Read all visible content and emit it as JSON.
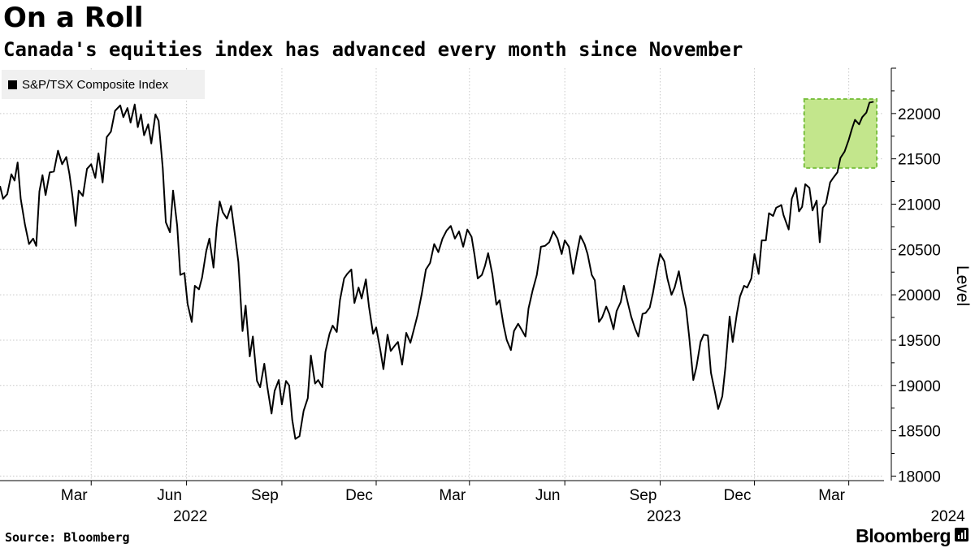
{
  "title": "On a Roll",
  "subtitle": "Canada's equities index has advanced every month since November",
  "legend": [
    {
      "label": "S&P/TSX Composite Index",
      "color": "#000000"
    }
  ],
  "footer": {
    "source": "Source: Bloomberg",
    "brand": "Bloomberg"
  },
  "chart_data": {
    "type": "line",
    "title": "On a Roll",
    "subtitle": "Canada's equities index has advanced every month since November",
    "ylabel": "Level",
    "ylim": [
      17950,
      22500
    ],
    "xlim": [
      "2021-12-03",
      "2024-04-04"
    ],
    "grid": true,
    "legend_position": "top-left",
    "yticks": [
      18000,
      18500,
      19000,
      19500,
      20000,
      20500,
      21000,
      21500,
      22000
    ],
    "ytick_labels": [
      "18000",
      "18500",
      "19000",
      "19500",
      "20000",
      "20500",
      "21000",
      "21500",
      "22000"
    ],
    "xticks": [
      {
        "date": "2022-03-01",
        "label": "Mar",
        "year": "2022"
      },
      {
        "date": "2022-06-01",
        "label": "Jun",
        "year": ""
      },
      {
        "date": "2022-09-01",
        "label": "Sep",
        "year": ""
      },
      {
        "date": "2022-12-01",
        "label": "Dec",
        "year": ""
      },
      {
        "date": "2023-03-01",
        "label": "Mar",
        "year": ""
      },
      {
        "date": "2023-06-01",
        "label": "Jun",
        "year": "2023"
      },
      {
        "date": "2023-09-01",
        "label": "Sep",
        "year": ""
      },
      {
        "date": "2023-12-01",
        "label": "Dec",
        "year": ""
      },
      {
        "date": "2024-03-01",
        "label": "Mar",
        "year": "2024"
      }
    ],
    "highlight": {
      "x_start": "2024-01-18",
      "x_end": "2024-03-28",
      "y_start": 21400,
      "y_end": 22160,
      "fill": "#c3e68c",
      "stroke": "#7cc142"
    },
    "series": [
      {
        "name": "S&P/TSX Composite Index",
        "color": "#000000",
        "points": [
          [
            "2021-12-03",
            21200
          ],
          [
            "2021-12-06",
            21060
          ],
          [
            "2021-12-10",
            21110
          ],
          [
            "2021-12-14",
            21330
          ],
          [
            "2021-12-17",
            21260
          ],
          [
            "2021-12-20",
            21460
          ],
          [
            "2021-12-23",
            21060
          ],
          [
            "2021-12-27",
            20780
          ],
          [
            "2021-12-31",
            20560
          ],
          [
            "2022-01-04",
            20620
          ],
          [
            "2022-01-07",
            20540
          ],
          [
            "2022-01-10",
            21140
          ],
          [
            "2022-01-13",
            21320
          ],
          [
            "2022-01-16",
            21100
          ],
          [
            "2022-01-20",
            21350
          ],
          [
            "2022-01-24",
            21360
          ],
          [
            "2022-01-28",
            21590
          ],
          [
            "2022-02-01",
            21440
          ],
          [
            "2022-02-05",
            21520
          ],
          [
            "2022-02-08",
            21330
          ],
          [
            "2022-02-11",
            21080
          ],
          [
            "2022-02-14",
            20760
          ],
          [
            "2022-02-17",
            21150
          ],
          [
            "2022-02-21",
            21090
          ],
          [
            "2022-02-25",
            21390
          ],
          [
            "2022-03-01",
            21440
          ],
          [
            "2022-03-05",
            21290
          ],
          [
            "2022-03-08",
            21560
          ],
          [
            "2022-03-12",
            21240
          ],
          [
            "2022-03-16",
            21740
          ],
          [
            "2022-03-20",
            21800
          ],
          [
            "2022-03-24",
            22030
          ],
          [
            "2022-03-29",
            22090
          ],
          [
            "2022-04-01",
            21960
          ],
          [
            "2022-04-05",
            22060
          ],
          [
            "2022-04-08",
            21900
          ],
          [
            "2022-04-12",
            22100
          ],
          [
            "2022-04-15",
            21850
          ],
          [
            "2022-04-18",
            21990
          ],
          [
            "2022-04-21",
            21760
          ],
          [
            "2022-04-25",
            21880
          ],
          [
            "2022-04-28",
            21670
          ],
          [
            "2022-05-02",
            21990
          ],
          [
            "2022-05-05",
            21920
          ],
          [
            "2022-05-09",
            21400
          ],
          [
            "2022-05-12",
            20800
          ],
          [
            "2022-05-16",
            20690
          ],
          [
            "2022-05-19",
            21150
          ],
          [
            "2022-05-23",
            20760
          ],
          [
            "2022-05-26",
            20220
          ],
          [
            "2022-05-30",
            20240
          ],
          [
            "2022-06-02",
            19900
          ],
          [
            "2022-06-06",
            19700
          ],
          [
            "2022-06-09",
            20100
          ],
          [
            "2022-06-13",
            20060
          ],
          [
            "2022-06-16",
            20190
          ],
          [
            "2022-06-20",
            20480
          ],
          [
            "2022-06-23",
            20620
          ],
          [
            "2022-06-27",
            20300
          ],
          [
            "2022-06-30",
            20740
          ],
          [
            "2022-07-03",
            21030
          ],
          [
            "2022-07-06",
            20910
          ],
          [
            "2022-07-10",
            20840
          ],
          [
            "2022-07-14",
            20980
          ],
          [
            "2022-07-18",
            20640
          ],
          [
            "2022-07-21",
            20360
          ],
          [
            "2022-07-25",
            19600
          ],
          [
            "2022-07-28",
            19880
          ],
          [
            "2022-08-01",
            19320
          ],
          [
            "2022-08-04",
            19540
          ],
          [
            "2022-08-08",
            19050
          ],
          [
            "2022-08-11",
            18980
          ],
          [
            "2022-08-15",
            19240
          ],
          [
            "2022-08-18",
            18980
          ],
          [
            "2022-08-22",
            18690
          ],
          [
            "2022-08-25",
            18940
          ],
          [
            "2022-08-29",
            19060
          ],
          [
            "2022-09-01",
            18790
          ],
          [
            "2022-09-05",
            19050
          ],
          [
            "2022-09-08",
            19000
          ],
          [
            "2022-09-11",
            18620
          ],
          [
            "2022-09-14",
            18410
          ],
          [
            "2022-09-18",
            18440
          ],
          [
            "2022-09-22",
            18720
          ],
          [
            "2022-09-26",
            18860
          ],
          [
            "2022-09-29",
            19330
          ],
          [
            "2022-10-03",
            19020
          ],
          [
            "2022-10-06",
            19060
          ],
          [
            "2022-10-10",
            18980
          ],
          [
            "2022-10-13",
            19370
          ],
          [
            "2022-10-17",
            19570
          ],
          [
            "2022-10-20",
            19660
          ],
          [
            "2022-10-24",
            19590
          ],
          [
            "2022-10-27",
            19940
          ],
          [
            "2022-10-31",
            20180
          ],
          [
            "2022-11-03",
            20230
          ],
          [
            "2022-11-07",
            20280
          ],
          [
            "2022-11-10",
            19910
          ],
          [
            "2022-11-14",
            20080
          ],
          [
            "2022-11-17",
            19960
          ],
          [
            "2022-11-21",
            20170
          ],
          [
            "2022-11-24",
            19870
          ],
          [
            "2022-11-28",
            19570
          ],
          [
            "2022-12-01",
            19640
          ],
          [
            "2022-12-05",
            19390
          ],
          [
            "2022-12-08",
            19180
          ],
          [
            "2022-12-12",
            19560
          ],
          [
            "2022-12-15",
            19380
          ],
          [
            "2022-12-19",
            19440
          ],
          [
            "2022-12-22",
            19480
          ],
          [
            "2022-12-26",
            19230
          ],
          [
            "2022-12-30",
            19580
          ],
          [
            "2023-01-03",
            19470
          ],
          [
            "2023-01-06",
            19600
          ],
          [
            "2023-01-10",
            19780
          ],
          [
            "2023-01-14",
            20010
          ],
          [
            "2023-01-18",
            20280
          ],
          [
            "2023-01-22",
            20350
          ],
          [
            "2023-01-26",
            20560
          ],
          [
            "2023-01-30",
            20470
          ],
          [
            "2023-02-03",
            20620
          ],
          [
            "2023-02-07",
            20710
          ],
          [
            "2023-02-11",
            20760
          ],
          [
            "2023-02-15",
            20620
          ],
          [
            "2023-02-19",
            20700
          ],
          [
            "2023-02-23",
            20530
          ],
          [
            "2023-02-27",
            20720
          ],
          [
            "2023-03-03",
            20640
          ],
          [
            "2023-03-06",
            20430
          ],
          [
            "2023-03-09",
            20180
          ],
          [
            "2023-03-13",
            20220
          ],
          [
            "2023-03-16",
            20320
          ],
          [
            "2023-03-19",
            20460
          ],
          [
            "2023-03-23",
            20230
          ],
          [
            "2023-03-27",
            19890
          ],
          [
            "2023-03-30",
            19940
          ],
          [
            "2023-04-03",
            19660
          ],
          [
            "2023-04-06",
            19500
          ],
          [
            "2023-04-10",
            19390
          ],
          [
            "2023-04-13",
            19600
          ],
          [
            "2023-04-17",
            19680
          ],
          [
            "2023-04-20",
            19620
          ],
          [
            "2023-04-24",
            19540
          ],
          [
            "2023-04-27",
            19850
          ],
          [
            "2023-05-01",
            20050
          ],
          [
            "2023-05-05",
            20220
          ],
          [
            "2023-05-09",
            20530
          ],
          [
            "2023-05-13",
            20540
          ],
          [
            "2023-05-17",
            20580
          ],
          [
            "2023-05-21",
            20700
          ],
          [
            "2023-05-25",
            20620
          ],
          [
            "2023-05-29",
            20450
          ],
          [
            "2023-06-01",
            20600
          ],
          [
            "2023-06-05",
            20530
          ],
          [
            "2023-06-09",
            20230
          ],
          [
            "2023-06-13",
            20480
          ],
          [
            "2023-06-16",
            20650
          ],
          [
            "2023-06-20",
            20560
          ],
          [
            "2023-06-23",
            20450
          ],
          [
            "2023-06-27",
            20220
          ],
          [
            "2023-06-30",
            20160
          ],
          [
            "2023-07-04",
            19700
          ],
          [
            "2023-07-07",
            19750
          ],
          [
            "2023-07-11",
            19870
          ],
          [
            "2023-07-14",
            19790
          ],
          [
            "2023-07-18",
            19620
          ],
          [
            "2023-07-21",
            19820
          ],
          [
            "2023-07-25",
            19920
          ],
          [
            "2023-07-28",
            20100
          ],
          [
            "2023-08-01",
            19900
          ],
          [
            "2023-08-04",
            19760
          ],
          [
            "2023-08-08",
            19620
          ],
          [
            "2023-08-11",
            19540
          ],
          [
            "2023-08-15",
            19790
          ],
          [
            "2023-08-18",
            19800
          ],
          [
            "2023-08-22",
            19860
          ],
          [
            "2023-08-25",
            20020
          ],
          [
            "2023-08-29",
            20280
          ],
          [
            "2023-09-01",
            20450
          ],
          [
            "2023-09-05",
            20370
          ],
          [
            "2023-09-08",
            20180
          ],
          [
            "2023-09-12",
            20000
          ],
          [
            "2023-09-15",
            20080
          ],
          [
            "2023-09-19",
            20260
          ],
          [
            "2023-09-22",
            20060
          ],
          [
            "2023-09-26",
            19850
          ],
          [
            "2023-09-29",
            19540
          ],
          [
            "2023-10-03",
            19060
          ],
          [
            "2023-10-06",
            19200
          ],
          [
            "2023-10-10",
            19480
          ],
          [
            "2023-10-13",
            19560
          ],
          [
            "2023-10-17",
            19550
          ],
          [
            "2023-10-20",
            19140
          ],
          [
            "2023-10-24",
            18920
          ],
          [
            "2023-10-27",
            18740
          ],
          [
            "2023-10-31",
            18880
          ],
          [
            "2023-11-03",
            19200
          ],
          [
            "2023-11-07",
            19760
          ],
          [
            "2023-11-10",
            19480
          ],
          [
            "2023-11-14",
            19790
          ],
          [
            "2023-11-17",
            19980
          ],
          [
            "2023-11-21",
            20100
          ],
          [
            "2023-11-24",
            20080
          ],
          [
            "2023-11-28",
            20180
          ],
          [
            "2023-12-01",
            20450
          ],
          [
            "2023-12-05",
            20230
          ],
          [
            "2023-12-08",
            20600
          ],
          [
            "2023-12-12",
            20600
          ],
          [
            "2023-12-15",
            20900
          ],
          [
            "2023-12-19",
            20870
          ],
          [
            "2023-12-22",
            20960
          ],
          [
            "2023-12-27",
            20990
          ],
          [
            "2023-12-29",
            20880
          ],
          [
            "2024-01-03",
            20720
          ],
          [
            "2024-01-06",
            21060
          ],
          [
            "2024-01-10",
            21180
          ],
          [
            "2024-01-13",
            20920
          ],
          [
            "2024-01-16",
            20970
          ],
          [
            "2024-01-19",
            21220
          ],
          [
            "2024-01-23",
            21180
          ],
          [
            "2024-01-26",
            20930
          ],
          [
            "2024-01-30",
            21040
          ],
          [
            "2024-02-02",
            20580
          ],
          [
            "2024-02-05",
            20960
          ],
          [
            "2024-02-08",
            21010
          ],
          [
            "2024-02-12",
            21240
          ],
          [
            "2024-02-15",
            21290
          ],
          [
            "2024-02-19",
            21350
          ],
          [
            "2024-02-22",
            21510
          ],
          [
            "2024-02-26",
            21580
          ],
          [
            "2024-03-01",
            21710
          ],
          [
            "2024-03-04",
            21830
          ],
          [
            "2024-03-07",
            21930
          ],
          [
            "2024-03-11",
            21880
          ],
          [
            "2024-03-14",
            21960
          ],
          [
            "2024-03-18",
            22010
          ],
          [
            "2024-03-21",
            22120
          ],
          [
            "2024-03-25",
            22130
          ]
        ]
      }
    ]
  }
}
